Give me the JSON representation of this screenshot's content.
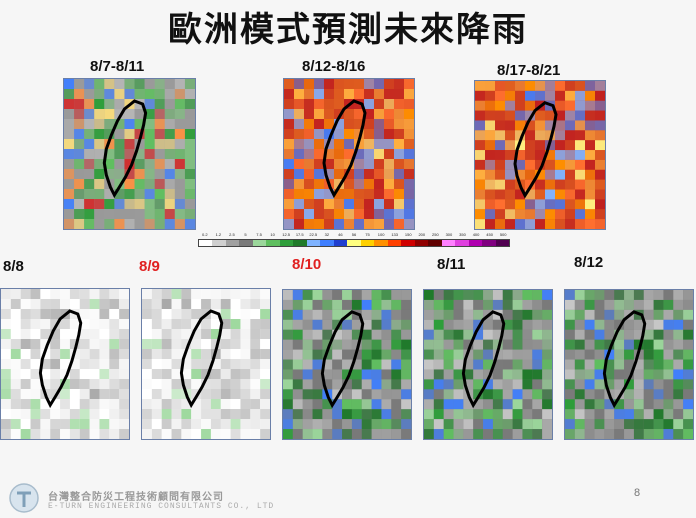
{
  "slide": {
    "title": "歐洲模式預測未來降雨",
    "page_number": "8"
  },
  "weekly_panels": [
    {
      "label": "8/7-8/11",
      "style": "moderate"
    },
    {
      "label": "8/12-8/16",
      "style": "heavy"
    },
    {
      "label": "8/17-8/21",
      "style": "heavy"
    }
  ],
  "daily_panels": [
    {
      "label": "8/8",
      "highlight": false,
      "style": "dry"
    },
    {
      "label": "8/9",
      "highlight": true,
      "style": "dry"
    },
    {
      "label": "8/10",
      "highlight": true,
      "style": "wet"
    },
    {
      "label": "8/11",
      "highlight": false,
      "style": "wet"
    },
    {
      "label": "8/12",
      "highlight": false,
      "style": "wet"
    }
  ],
  "colorbar": {
    "ticks": [
      "0.2",
      "1.2",
      "2.5",
      "5",
      "7.5",
      "10",
      "12.5",
      "17.5",
      "22.5",
      "32",
      "46",
      "56",
      "75",
      "100",
      "133",
      "150",
      "200",
      "250",
      "300",
      "350",
      "400",
      "450",
      "500"
    ],
    "colors": [
      "#ffffff",
      "#d0d0d0",
      "#a0a0a0",
      "#7a7a7a",
      "#9bd79b",
      "#5fbf5f",
      "#2e9e3a",
      "#1f7a2a",
      "#7fb3ff",
      "#3f7fff",
      "#1f3fd0",
      "#ffff80",
      "#ffd000",
      "#ff9000",
      "#ff4000",
      "#d00000",
      "#900000",
      "#600000",
      "#ff80ff",
      "#e040e0",
      "#b000b0",
      "#800080",
      "#500050"
    ]
  },
  "footer": {
    "company_cn": "台灣整合防災工程技術顧問有限公司",
    "company_en": "E-TURN ENGINEERING CONSULTANTS CO., LTD"
  },
  "colors": {
    "highlight_label": "#e02020",
    "map_border": "#6a7fa8"
  }
}
